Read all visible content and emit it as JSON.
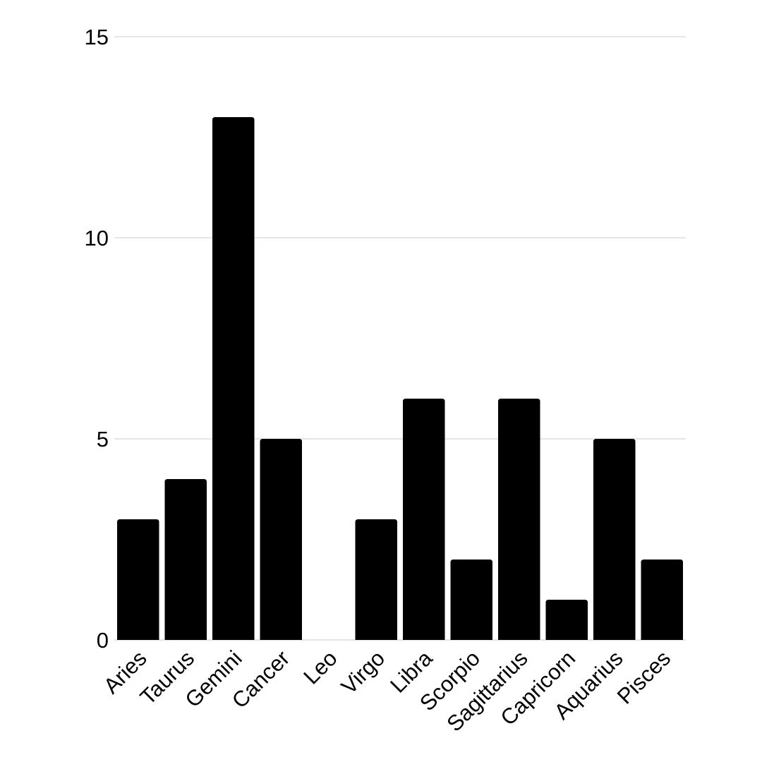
{
  "chart_data": {
    "type": "bar",
    "categories": [
      "Aries",
      "Taurus",
      "Gemini",
      "Cancer",
      "Leo",
      "Virgo",
      "Libra",
      "Scorpio",
      "Sagittarius",
      "Capricorn",
      "Aquarius",
      "Pisces"
    ],
    "values": [
      3,
      4,
      13,
      5,
      0,
      3,
      6,
      2,
      6,
      1,
      5,
      2
    ],
    "color": "#000000",
    "ylim": [
      0,
      15
    ],
    "yticks": [
      0,
      5,
      10,
      15
    ],
    "grid": true
  }
}
